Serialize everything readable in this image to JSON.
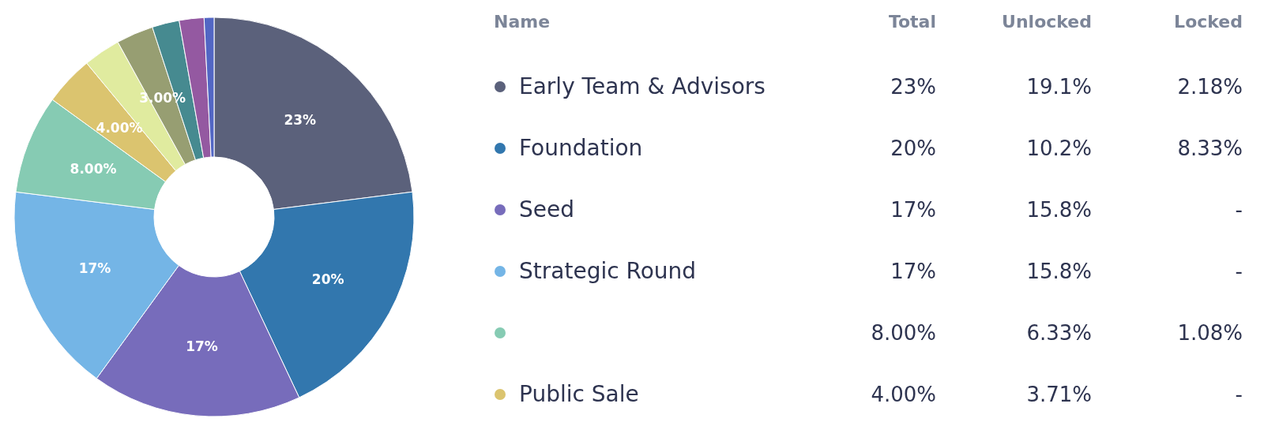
{
  "chart_data": [
    {
      "type": "donut",
      "categories": [
        null,
        null,
        null,
        null,
        null,
        null,
        null,
        null,
        null,
        null,
        null
      ],
      "values": [
        23,
        20,
        17,
        17,
        8,
        4,
        3,
        3,
        2.2,
        2,
        0.8
      ],
      "colors": [
        "#5b617b",
        "#3277ae",
        "#776cbb",
        "#74b5e6",
        "#86cbb3",
        "#dbc46f",
        "#e0eb9f",
        "#979e72",
        "#468a90",
        "#9459a1",
        "#5266c4"
      ],
      "value_labels": [
        "23%",
        "20%",
        "17%",
        "17%",
        "8.00%",
        "4.00%",
        null,
        "3.00%",
        null,
        null,
        null
      ]
    },
    {
      "type": "other",
      "legend_title": "Name",
      "categories": [
        "Total",
        "Unlocked",
        "Locked"
      ],
      "series": [
        {
          "name": "Early Team & Advisors",
          "color": "#5b617b",
          "values": [
            23,
            19.1,
            2.18
          ],
          "value_labels": [
            "23%",
            "19.1%",
            "2.18%"
          ]
        },
        {
          "name": "Foundation",
          "color": "#3277ae",
          "values": [
            20,
            10.2,
            8.33
          ],
          "value_labels": [
            "20%",
            "10.2%",
            "8.33%"
          ]
        },
        {
          "name": "Seed",
          "color": "#776cbb",
          "values": [
            17,
            15.8,
            null
          ],
          "value_labels": [
            "17%",
            "15.8%",
            "-"
          ]
        },
        {
          "name": "Strategic Round",
          "color": "#74b5e6",
          "values": [
            17,
            15.8,
            null
          ],
          "value_labels": [
            "17%",
            "15.8%",
            "-"
          ]
        },
        {
          "color": "#86cbb3",
          "values": [
            8,
            6.33,
            1.08
          ],
          "value_labels": [
            "8.00%",
            "6.33%",
            "1.08%"
          ]
        },
        {
          "name": "Public Sale",
          "color": "#dbc46f",
          "values": [
            4,
            3.71,
            null
          ],
          "value_labels": [
            "4.00%",
            "3.71%",
            "-"
          ]
        }
      ]
    }
  ]
}
